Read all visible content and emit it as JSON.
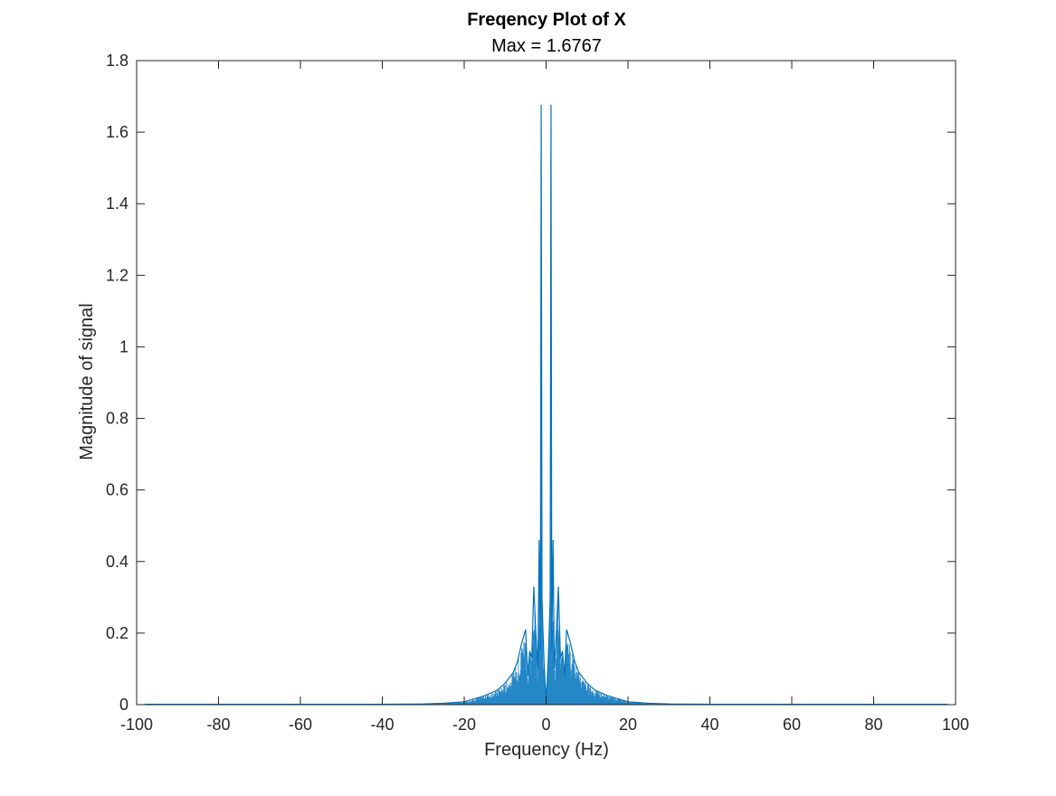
{
  "chart_data": {
    "type": "line",
    "title": "Freqency Plot of X",
    "subtitle": "Max = 1.6767",
    "xlabel": "Frequency (Hz)",
    "ylabel": "Magnitude of signal",
    "xlim": [
      -100,
      100
    ],
    "ylim": [
      0,
      1.8
    ],
    "xticks": [
      "-100",
      "-80",
      "-60",
      "-40",
      "-20",
      "0",
      "20",
      "40",
      "60",
      "80",
      "100"
    ],
    "yticks": [
      "0",
      "0.2",
      "0.4",
      "0.6",
      "0.8",
      "1",
      "1.2",
      "1.4",
      "1.6",
      "1.8"
    ],
    "grid": false,
    "line_color": "#0072BD",
    "series": [
      {
        "x": [
          -98,
          -40,
          -30,
          -25,
          -20,
          -15,
          -12,
          -10,
          -8,
          -7,
          -6,
          -5,
          -4.5,
          -4,
          -3.5,
          -3,
          -2.5,
          -2,
          -1.7,
          -1.4,
          -1.2,
          -1,
          -0.8,
          -0.5,
          -0.2,
          0,
          0.2,
          0.5,
          0.8,
          1,
          1.2,
          1.4,
          1.7,
          2,
          2.5,
          3,
          3.5,
          4,
          4.5,
          5,
          6,
          7,
          8,
          10,
          12,
          15,
          20,
          25,
          30,
          40,
          98
        ],
        "y": [
          0.001,
          0.001,
          0.002,
          0.004,
          0.008,
          0.025,
          0.04,
          0.06,
          0.09,
          0.12,
          0.17,
          0.21,
          0.08,
          0.15,
          0.13,
          0.33,
          0.2,
          0.1,
          0.46,
          0.15,
          1.6767,
          0.3,
          0.22,
          0.12,
          0.05,
          0.02,
          0.05,
          0.12,
          0.22,
          0.3,
          1.6767,
          0.15,
          0.46,
          0.1,
          0.2,
          0.33,
          0.13,
          0.15,
          0.08,
          0.21,
          0.17,
          0.12,
          0.09,
          0.06,
          0.04,
          0.025,
          0.008,
          0.004,
          0.002,
          0.001,
          0.001
        ]
      }
    ]
  }
}
